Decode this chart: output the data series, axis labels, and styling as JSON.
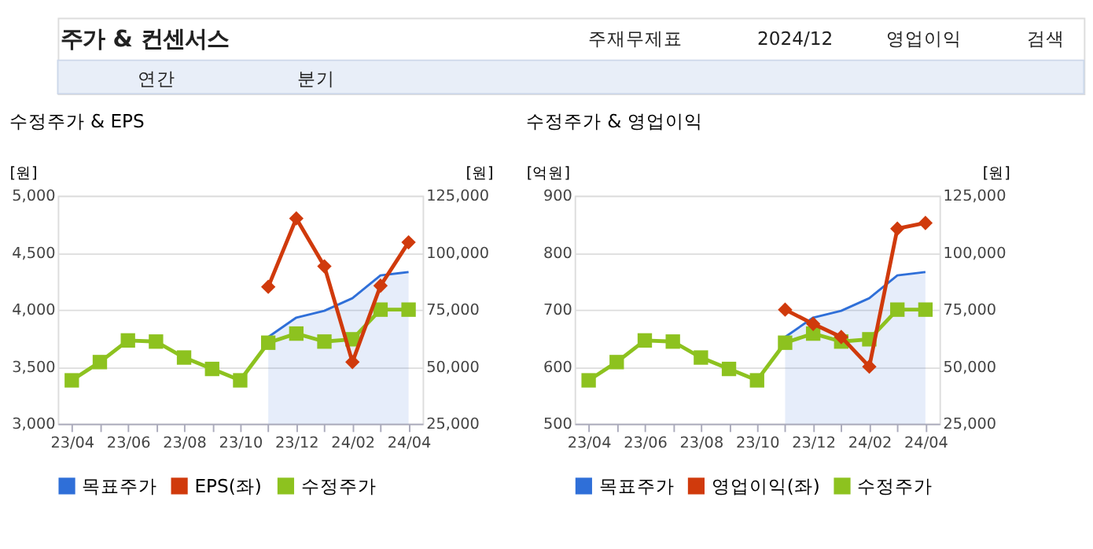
{
  "chart_data": [
    {
      "type": "other",
      "title": "주가 & 컨센서스",
      "annotations": [
        "주재무제표",
        "2024/12",
        "영업이익",
        "검색",
        "연간",
        "분기"
      ]
    },
    {
      "type": "line",
      "title": "수정주가 & EPS",
      "categories": [
        "23/04",
        null,
        "23/06",
        null,
        "23/08",
        null,
        "23/10",
        null,
        "23/12",
        null,
        "24/02",
        null,
        "24/04"
      ],
      "ylabel": "[원]",
      "y2label": "[원]",
      "ylim": [
        3000,
        5000
      ],
      "yticks": [
        {
          "value": 3000,
          "label": "3,000"
        },
        {
          "value": 3500,
          "label": "3,500"
        },
        {
          "value": 4000,
          "label": "4,000"
        },
        {
          "value": 4500,
          "label": "4,500"
        },
        {
          "value": 5000,
          "label": "5,000"
        }
      ],
      "y2lim": [
        25000,
        125000
      ],
      "y2ticks": [
        {
          "value": 25000,
          "label": "25,000"
        },
        {
          "value": 50000,
          "label": "50,000"
        },
        {
          "value": 75000,
          "label": "75,000"
        },
        {
          "value": 100000,
          "label": "100,000"
        },
        {
          "value": 125000,
          "label": "125,000"
        }
      ],
      "grid": "y",
      "legend": "bottom",
      "series": [
        {
          "name": "목표주가",
          "type": "area",
          "axis": "y2",
          "color": "#2f6fd8",
          "values": [
            null,
            null,
            null,
            null,
            null,
            null,
            null,
            63000,
            71500,
            74500,
            80000,
            90000,
            91500
          ]
        },
        {
          "name": "EPS(좌)",
          "type": "line",
          "color": "#d03a0c",
          "marker": "diamond",
          "values": [
            null,
            null,
            null,
            null,
            null,
            null,
            null,
            4200,
            4800,
            4380,
            3540,
            4210,
            4590
          ]
        },
        {
          "name": "수정주가",
          "type": "line",
          "axis": "y2",
          "color": "#8dc21f",
          "marker": "square",
          "values": [
            44000,
            52000,
            61500,
            61000,
            54000,
            49000,
            44000,
            60500,
            64500,
            61000,
            62000,
            75000,
            75000
          ]
        }
      ]
    },
    {
      "type": "line",
      "title": "수정주가 & 영업이익",
      "categories": [
        "23/04",
        null,
        "23/06",
        null,
        "23/08",
        null,
        "23/10",
        null,
        "23/12",
        null,
        "24/02",
        null,
        "24/04"
      ],
      "ylabel": "[억원]",
      "y2label": "[원]",
      "ylim": [
        500,
        900
      ],
      "yticks": [
        500,
        600,
        700,
        800,
        900
      ],
      "y2lim": [
        25000,
        125000
      ],
      "y2ticks": [
        {
          "value": 25000,
          "label": "25,000"
        },
        {
          "value": 50000,
          "label": "50,000"
        },
        {
          "value": 75000,
          "label": "75,000"
        },
        {
          "value": 100000,
          "label": "100,000"
        },
        {
          "value": 125000,
          "label": "125,000"
        }
      ],
      "grid": "y",
      "legend": "bottom",
      "series": [
        {
          "name": "목표주가",
          "type": "area",
          "axis": "y2",
          "color": "#2f6fd8",
          "values": [
            null,
            null,
            null,
            null,
            null,
            null,
            null,
            63000,
            71500,
            74500,
            80000,
            90000,
            91500
          ]
        },
        {
          "name": "영업이익(좌)",
          "type": "line",
          "color": "#d03a0c",
          "marker": "diamond",
          "values": [
            null,
            null,
            null,
            null,
            null,
            null,
            null,
            700,
            675,
            652,
            600,
            842,
            852
          ]
        },
        {
          "name": "수정주가",
          "type": "line",
          "axis": "y2",
          "color": "#8dc21f",
          "marker": "square",
          "values": [
            44000,
            52000,
            61500,
            61000,
            54000,
            49000,
            44000,
            60500,
            64500,
            61000,
            62000,
            75000,
            75000
          ]
        }
      ]
    }
  ]
}
